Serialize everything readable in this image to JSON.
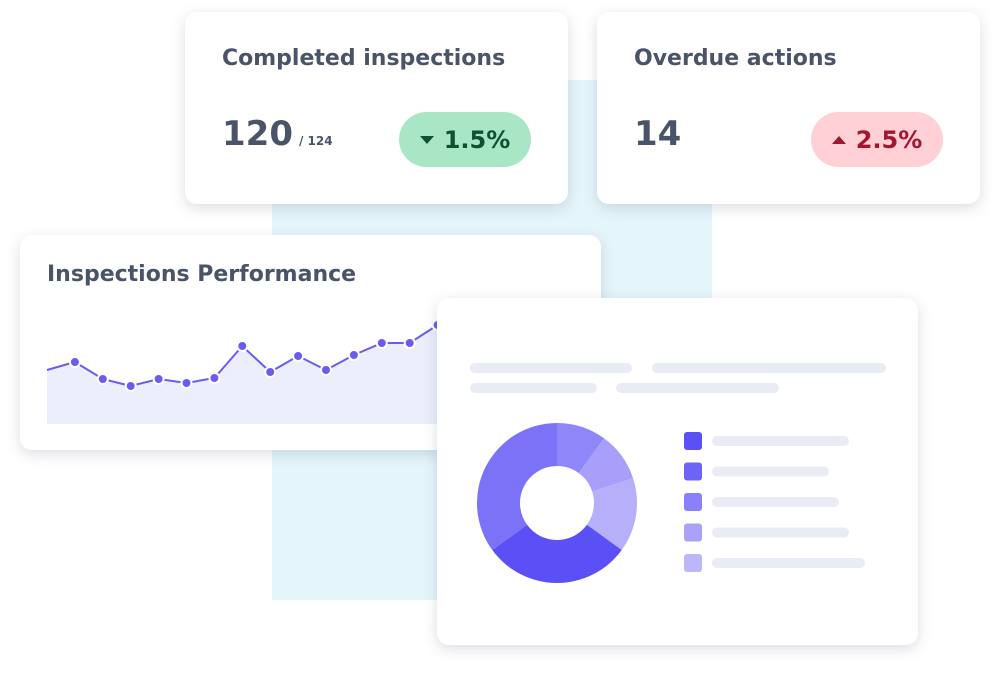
{
  "cards": [
    {
      "title": "Completed inspections",
      "value": "120",
      "total": "/ 124",
      "change": "1.5%",
      "direction": "down"
    },
    {
      "title": "Overdue actions",
      "value": "14",
      "change": "2.5%",
      "direction": "up"
    }
  ],
  "performance": {
    "title": "Inspections Performance",
    "color": "#6a5cf0",
    "area_color": "#eceefb",
    "values": [
      54,
      62,
      45,
      38,
      45,
      41,
      46,
      78,
      52,
      68,
      54,
      69,
      81,
      81,
      99
    ]
  },
  "donut": {
    "values": [
      10,
      10,
      15,
      30,
      35
    ],
    "colors": [
      "#8f86fa",
      "#a79ff9",
      "#b6b0fb",
      "#5b50f5",
      "#7b72f8"
    ],
    "legend_colors": [
      "#5b50f5",
      "#6d63f7",
      "#8a80f8",
      "#a9a1fa",
      "#bcb6fb"
    ]
  }
}
